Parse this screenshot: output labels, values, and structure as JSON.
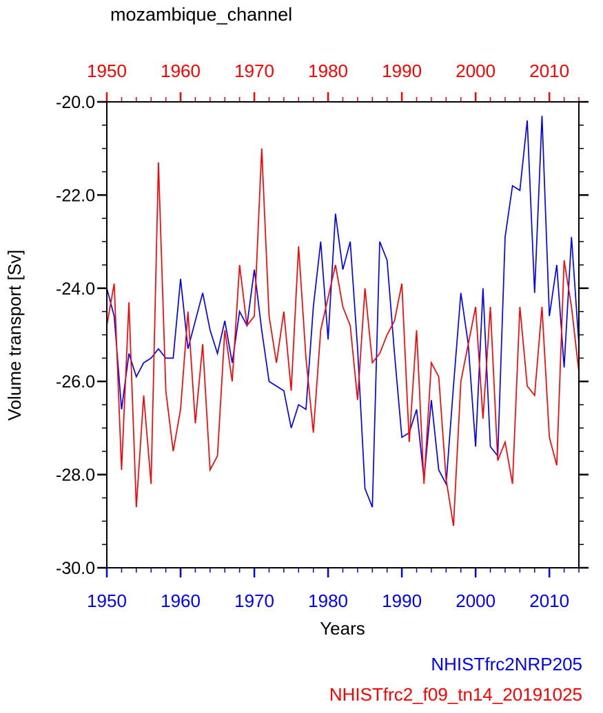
{
  "title": "mozambique_channel",
  "xlabel": "Years",
  "ylabel": "Volume transport [Sv]",
  "legend": {
    "position": "bottom-right",
    "items": [
      {
        "label": "NHISTfrc2NRP205",
        "color": "#0000ff"
      },
      {
        "label": "NHISTfrc2_f09_tn14_20191025",
        "color": "#ff0000"
      }
    ]
  },
  "colors": {
    "axis": "#000000",
    "top_axis_labels": "#ff0000",
    "bottom_axis_labels": "#0000ff",
    "left_axis_labels": "#000000",
    "background": "#ffffff"
  },
  "chart_data": {
    "type": "line",
    "title": "mozambique_channel",
    "xlabel": "Years",
    "ylabel": "Volume transport [Sv]",
    "xlim": [
      1950,
      2014
    ],
    "ylim": [
      -30.0,
      -20.0
    ],
    "x_major_ticks": [
      1950,
      1960,
      1970,
      1980,
      1990,
      2000,
      2010
    ],
    "x_minor_step": 2,
    "y_major_ticks": [
      -30.0,
      -28.0,
      -26.0,
      -24.0,
      -22.0,
      -20.0
    ],
    "y_minor_step": 0.5,
    "grid": false,
    "x": [
      1950,
      1951,
      1952,
      1953,
      1954,
      1955,
      1956,
      1957,
      1958,
      1959,
      1960,
      1961,
      1962,
      1963,
      1964,
      1965,
      1966,
      1967,
      1968,
      1969,
      1970,
      1971,
      1972,
      1973,
      1974,
      1975,
      1976,
      1977,
      1978,
      1979,
      1980,
      1981,
      1982,
      1983,
      1984,
      1985,
      1986,
      1987,
      1988,
      1989,
      1990,
      1991,
      1992,
      1993,
      1994,
      1995,
      1996,
      1997,
      1998,
      1999,
      2000,
      2001,
      2002,
      2003,
      2004,
      2005,
      2006,
      2007,
      2008,
      2009,
      2010,
      2011,
      2012,
      2013,
      2014
    ],
    "series": [
      {
        "name": "NHISTfrc2NRP205",
        "color": "#0000ff",
        "values": [
          -24.0,
          -24.6,
          -26.6,
          -25.4,
          -25.9,
          -25.6,
          -25.5,
          -25.3,
          -25.5,
          -25.5,
          -23.8,
          -25.3,
          -24.7,
          -24.1,
          -24.9,
          -25.4,
          -24.7,
          -25.6,
          -24.5,
          -24.8,
          -23.6,
          -24.9,
          -26.0,
          -26.1,
          -26.2,
          -27.0,
          -26.5,
          -26.6,
          -24.4,
          -23.0,
          -25.1,
          -22.4,
          -23.6,
          -23.0,
          -25.3,
          -28.3,
          -28.7,
          -23.0,
          -23.4,
          -25.4,
          -27.2,
          -27.1,
          -26.6,
          -28.1,
          -26.4,
          -27.9,
          -28.2,
          -26.1,
          -24.1,
          -25.2,
          -27.4,
          -24.0,
          -27.4,
          -27.6,
          -22.9,
          -21.8,
          -21.9,
          -20.4,
          -24.1,
          -20.3,
          -24.6,
          -23.5,
          -25.7,
          -22.9,
          -25.2
        ]
      },
      {
        "name": "NHISTfrc2_f09_tn14_20191025",
        "color": "#ff0000",
        "values": [
          -24.8,
          -23.9,
          -27.9,
          -24.3,
          -28.7,
          -26.3,
          -28.2,
          -21.3,
          -26.2,
          -27.5,
          -26.6,
          -24.5,
          -26.9,
          -25.2,
          -27.9,
          -27.6,
          -24.9,
          -26.0,
          -23.5,
          -24.8,
          -24.6,
          -21.0,
          -24.6,
          -25.6,
          -24.5,
          -26.2,
          -23.1,
          -25.5,
          -27.1,
          -24.9,
          -24.2,
          -23.5,
          -24.4,
          -24.8,
          -26.4,
          -24.0,
          -25.6,
          -25.4,
          -25.0,
          -24.7,
          -23.9,
          -27.3,
          -24.9,
          -28.2,
          -25.6,
          -25.9,
          -28.1,
          -29.1,
          -26.0,
          -25.2,
          -24.4,
          -26.8,
          -24.4,
          -27.7,
          -27.3,
          -28.2,
          -24.4,
          -26.1,
          -26.3,
          -24.4,
          -27.2,
          -27.8,
          -23.4,
          -24.4,
          -25.8
        ]
      }
    ]
  }
}
